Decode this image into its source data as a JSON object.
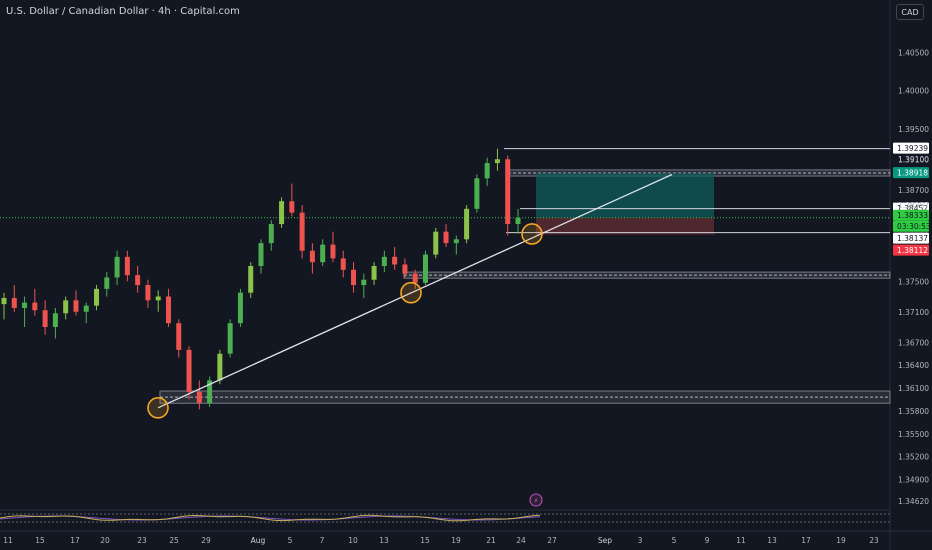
{
  "header": {
    "title": "U.S. Dollar / Canadian Dollar · 4h · Capital.com",
    "currency": "CAD"
  },
  "colors": {
    "background": "#131722",
    "bull": "#4caf50",
    "bull_bright": "#8bc34a",
    "bear": "#ef5350",
    "axis_text": "#b2b5be",
    "trendline": "#e0e3eb",
    "marker": "#f5a623",
    "target_zone": "#0f5e5c",
    "stop_zone": "#5a2a30",
    "current_price": "#2ecc40",
    "oscillator": "#c9b15a",
    "oscillator_signal": "#7e57c2"
  },
  "chart_data": {
    "type": "candlestick",
    "ylim": [
      1.345,
      1.409
    ],
    "y_ticks": [
      "1.40500",
      "1.40000",
      "1.39500",
      "1.39100",
      "1.38700",
      "1.38400",
      "1.38100",
      "1.37500",
      "1.37100",
      "1.36700",
      "1.36400",
      "1.36100",
      "1.35800",
      "1.35500",
      "1.35200",
      "1.34900",
      "1.34620"
    ],
    "x_tick_labels": [
      "11",
      "15",
      "17",
      "20",
      "23",
      "25",
      "29",
      "Aug",
      "5",
      "7",
      "10",
      "13",
      "15",
      "19",
      "21",
      "24",
      "27",
      "Sep",
      "3",
      "5",
      "9",
      "11",
      "13",
      "17",
      "19",
      "23"
    ],
    "price_labels": [
      {
        "text": "1.39239",
        "role": "high-level"
      },
      {
        "text": "1.39100",
        "role": "scale"
      },
      {
        "text": "1.38918",
        "role": "take-profit"
      },
      {
        "text": "1.38452",
        "role": "level"
      },
      {
        "text": "1.38357",
        "role": "scale"
      },
      {
        "text": "1.38333",
        "role": "current"
      },
      {
        "text": "03:30:53",
        "role": "countdown"
      },
      {
        "text": "1.38137",
        "role": "level"
      },
      {
        "text": "1.38112",
        "role": "stop-loss"
      }
    ],
    "candles_ohlc_summary": [
      [
        1.372,
        1.3735,
        1.37,
        1.3728
      ],
      [
        1.3728,
        1.3745,
        1.371,
        1.3715
      ],
      [
        1.3715,
        1.373,
        1.369,
        1.3722
      ],
      [
        1.3722,
        1.374,
        1.3705,
        1.3712
      ],
      [
        1.3712,
        1.3725,
        1.368,
        1.369
      ],
      [
        1.369,
        1.3715,
        1.3675,
        1.3708
      ],
      [
        1.3708,
        1.373,
        1.37,
        1.3725
      ],
      [
        1.3725,
        1.3738,
        1.3705,
        1.371
      ],
      [
        1.371,
        1.3722,
        1.3695,
        1.3718
      ],
      [
        1.3718,
        1.3745,
        1.3712,
        1.374
      ],
      [
        1.374,
        1.3762,
        1.373,
        1.3755
      ],
      [
        1.3755,
        1.379,
        1.3745,
        1.3782
      ],
      [
        1.3782,
        1.379,
        1.375,
        1.3758
      ],
      [
        1.3758,
        1.377,
        1.3735,
        1.3745
      ],
      [
        1.3745,
        1.3752,
        1.3715,
        1.3725
      ],
      [
        1.3725,
        1.3738,
        1.371,
        1.373
      ],
      [
        1.373,
        1.374,
        1.369,
        1.3695
      ],
      [
        1.3695,
        1.37,
        1.365,
        1.366
      ],
      [
        1.366,
        1.3665,
        1.3595,
        1.3605
      ],
      [
        1.3605,
        1.362,
        1.3582,
        1.359
      ],
      [
        1.359,
        1.3625,
        1.3585,
        1.362
      ],
      [
        1.362,
        1.366,
        1.3615,
        1.3655
      ],
      [
        1.3655,
        1.37,
        1.365,
        1.3695
      ],
      [
        1.3695,
        1.374,
        1.369,
        1.3735
      ],
      [
        1.3735,
        1.3775,
        1.3728,
        1.377
      ],
      [
        1.377,
        1.3805,
        1.376,
        1.38
      ],
      [
        1.38,
        1.383,
        1.379,
        1.3825
      ],
      [
        1.3825,
        1.386,
        1.382,
        1.3855
      ],
      [
        1.3855,
        1.3878,
        1.3835,
        1.384
      ],
      [
        1.384,
        1.385,
        1.378,
        1.379
      ],
      [
        1.379,
        1.38,
        1.376,
        1.3775
      ],
      [
        1.3775,
        1.3805,
        1.377,
        1.3798
      ],
      [
        1.3798,
        1.3815,
        1.3775,
        1.378
      ],
      [
        1.378,
        1.379,
        1.3755,
        1.3765
      ],
      [
        1.3765,
        1.3775,
        1.3735,
        1.3745
      ],
      [
        1.3745,
        1.376,
        1.3728,
        1.3752
      ],
      [
        1.3752,
        1.3775,
        1.3745,
        1.377
      ],
      [
        1.377,
        1.379,
        1.3762,
        1.3782
      ],
      [
        1.3782,
        1.3795,
        1.3765,
        1.3772
      ],
      [
        1.3772,
        1.378,
        1.3755,
        1.376
      ],
      [
        1.376,
        1.3765,
        1.374,
        1.3748
      ],
      [
        1.3748,
        1.379,
        1.3745,
        1.3785
      ],
      [
        1.3785,
        1.382,
        1.378,
        1.3815
      ],
      [
        1.3815,
        1.3825,
        1.3795,
        1.38
      ],
      [
        1.38,
        1.381,
        1.3785,
        1.3805
      ],
      [
        1.3805,
        1.385,
        1.38,
        1.3845
      ],
      [
        1.3845,
        1.389,
        1.384,
        1.3885
      ],
      [
        1.3885,
        1.3912,
        1.3875,
        1.3905
      ],
      [
        1.3905,
        1.3924,
        1.3895,
        1.391
      ],
      [
        1.391,
        1.3915,
        1.381,
        1.3825
      ],
      [
        1.3825,
        1.3845,
        1.3812,
        1.3833
      ]
    ],
    "zones": [
      {
        "name": "resistance",
        "from": 1.3888,
        "to": 1.3896
      },
      {
        "name": "support-mid",
        "from": 1.3754,
        "to": 1.3762
      },
      {
        "name": "support-low",
        "from": 1.359,
        "to": 1.3606
      }
    ],
    "position": {
      "entry": 1.38333,
      "target": 1.38918,
      "stop": 1.38112
    },
    "trendline": {
      "from": 1.3584,
      "to": 1.389
    }
  }
}
